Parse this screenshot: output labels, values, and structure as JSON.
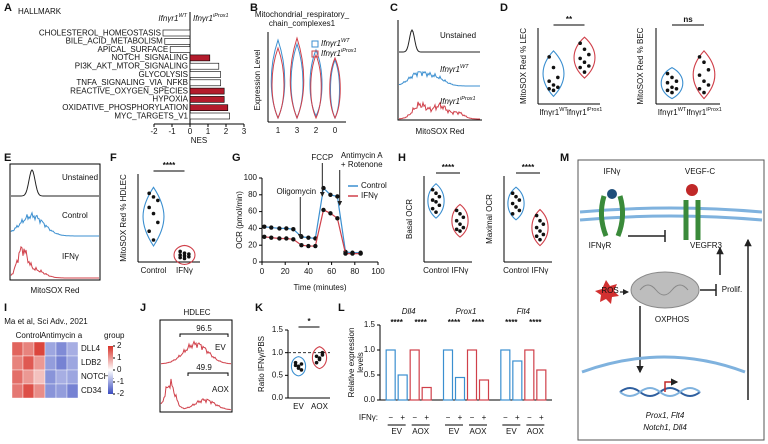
{
  "panel_labels": [
    "A",
    "B",
    "C",
    "D",
    "E",
    "F",
    "G",
    "H",
    "I",
    "J",
    "K",
    "L",
    "M"
  ],
  "chart_data": [
    {
      "type": "hbar",
      "title": "HALLMARK",
      "group_labels": [
        {
          "label": "Ifnγr1",
          "superscript": "WT"
        },
        {
          "label": "Ifnγr1",
          "superscript": "iProx1"
        }
      ],
      "categories": [
        "CHOLESTEROL_HOMEOSTASIS",
        "BILE_ACID_METABOLISM",
        "APICAL_SURFACE",
        "NOTCH_SIGNALING",
        "PI3K_AKT_MTOR_SIGNALING",
        "GLYCOLYSIS",
        "TNFA_SIGNALING_VIA_NFKB",
        "REACTIVE_OXYGEN_SPECIES",
        "HYPOXIA",
        "OXIDATIVE_PHOSPHORYLATION",
        "MYC_TARGETS_V1"
      ],
      "values": [
        -1.5,
        -1.4,
        -1.1,
        1.1,
        1.6,
        1.7,
        1.7,
        1.9,
        1.9,
        2.1,
        2.2
      ],
      "colors": [
        "#ffffff",
        "#ffffff",
        "#ffffff",
        "#b31b2c",
        "#ffffff",
        "#ffffff",
        "#ffffff",
        "#b31b2c",
        "#b31b2c",
        "#b31b2c",
        "#ffffff"
      ],
      "xlim": [
        -2,
        3
      ],
      "xticks": [
        -2,
        -1,
        0,
        1,
        2,
        3
      ],
      "xlabel": "NES"
    },
    {
      "type": "violin",
      "title": [
        "Mitochondrial_respiratory_",
        "chain_complexes1"
      ],
      "ylabel": "Expression Level",
      "categories": [
        "1",
        "3",
        "2",
        "0"
      ],
      "series": [
        {
          "name": "Ifnγr1",
          "superscript": "WT",
          "color": "#3b8fd0"
        },
        {
          "name": "Ifnγr1",
          "superscript": "iProx1",
          "color": "#d0404a"
        }
      ]
    },
    {
      "type": "density",
      "labels": [
        {
          "label": "Unstained"
        },
        {
          "label": "Ifnγr1",
          "superscript": "WT"
        },
        {
          "label": "Ifnγr1",
          "superscript": "iProx1"
        }
      ],
      "colors": [
        "#222222",
        "#3b8fd0",
        "#d0404a"
      ],
      "xlabel": "MitoSOX Red"
    },
    {
      "type": "dot",
      "ylabel": "MitoSOX Red % LEC",
      "significance": "**",
      "categories": [
        {
          "label": "Ifnγr1",
          "superscript": "WT"
        },
        {
          "label": "Ifnγr1",
          "superscript": "iProx1"
        }
      ],
      "values": [
        [
          62,
          48,
          35,
          30,
          25,
          22,
          20,
          18
        ],
        [
          80,
          72,
          65,
          60,
          55,
          50,
          48,
          42
        ]
      ],
      "colors": [
        "#3b8fd0",
        "#d0404a"
      ],
      "ylim": [
        0,
        100
      ]
    },
    {
      "type": "dot",
      "ylabel": "MitoSOX Red % BEC",
      "significance": "ns",
      "categories": [
        {
          "label": "Ifnγr1",
          "superscript": "WT"
        },
        {
          "label": "Ifnγr1",
          "superscript": "iProx1"
        }
      ],
      "values": [
        [
          40,
          35,
          30,
          28,
          22,
          20,
          18,
          15
        ],
        [
          62,
          55,
          45,
          38,
          30,
          25,
          20,
          15
        ]
      ],
      "colors": [
        "#3b8fd0",
        "#d0404a"
      ],
      "ylim": [
        0,
        100
      ]
    },
    {
      "type": "density",
      "labels": [
        {
          "label": "Unstained"
        },
        {
          "label": "Control"
        },
        {
          "label": "IFNγ"
        }
      ],
      "colors": [
        "#222222",
        "#3b8fd0",
        "#d0404a"
      ],
      "xlabel": "MitoSOX Red"
    },
    {
      "type": "dot",
      "ylabel": "MitoSOX Red % HDLEC",
      "significance": "****",
      "categories": [
        "Control",
        "IFNγ"
      ],
      "values": [
        [
          78,
          74,
          70,
          62,
          55,
          45,
          35,
          25
        ],
        [
          12,
          10,
          9,
          8,
          7,
          6,
          5,
          4
        ]
      ],
      "colors": [
        "#3b8fd0",
        "#d0404a"
      ],
      "ylim": [
        0,
        100
      ]
    },
    {
      "type": "line",
      "xlabel": "Time (minutes)",
      "ylabel": "OCR (pmol/min)",
      "annotations": [
        {
          "text": [
            "Oligomycin"
          ],
          "x": 33
        },
        {
          "text": [
            "FCCP"
          ],
          "x": 52
        },
        {
          "text": [
            "Antimycin A",
            "+ Rotenone"
          ],
          "x": 67
        }
      ],
      "x": [
        2,
        8,
        15,
        21,
        27,
        34,
        40,
        46,
        53,
        59,
        65,
        72,
        78,
        85
      ],
      "series": [
        {
          "name": "Control",
          "color": "#3b8fd0",
          "values": [
            42,
            41,
            40,
            40,
            39,
            30,
            29,
            28,
            88,
            80,
            78,
            12,
            11,
            11
          ]
        },
        {
          "name": "IFNγ",
          "color": "#d0404a",
          "values": [
            30,
            29,
            28,
            28,
            27,
            20,
            19,
            19,
            62,
            58,
            52,
            10,
            10,
            10
          ]
        }
      ],
      "xlim": [
        0,
        100
      ],
      "xticks": [
        0,
        20,
        40,
        60,
        80,
        100
      ],
      "ylim": [
        0,
        100
      ],
      "yticks": [
        0,
        20,
        40,
        60,
        80,
        100
      ]
    },
    {
      "type": "dot",
      "ylabel": "Basal OCR",
      "significance": "****",
      "categories": [
        "Control",
        "IFNγ"
      ],
      "values": [
        [
          42,
          40,
          38,
          36,
          35,
          33,
          31,
          29
        ],
        [
          30,
          28,
          26,
          24,
          22,
          20,
          19,
          18
        ]
      ],
      "colors": [
        "#3b8fd0",
        "#d0404a"
      ],
      "ylim": [
        0,
        50
      ]
    },
    {
      "type": "dot",
      "ylabel": "Maximal OCR",
      "significance": "****",
      "categories": [
        "Control",
        "IFNγ"
      ],
      "values": [
        [
          80,
          76,
          72,
          68,
          64,
          60,
          56
        ],
        [
          54,
          48,
          44,
          40,
          36,
          32,
          30,
          26
        ]
      ],
      "colors": [
        "#3b8fd0",
        "#d0404a"
      ],
      "ylim": [
        0,
        100
      ]
    },
    {
      "type": "heatmap",
      "title": "Ma et al, Sci Adv., 2021",
      "groups": [
        "Control",
        "Antimycin a"
      ],
      "legend_title": "group",
      "rows": [
        "DLL4",
        "LDB2",
        "NOTCH1",
        "CD34"
      ],
      "values": [
        [
          1.5,
          1.2,
          1.8,
          -1.0,
          -1.3,
          -0.9
        ],
        [
          1.2,
          1.6,
          1.0,
          -1.1,
          -1.4,
          -1.0
        ],
        [
          1.4,
          1.0,
          0.6,
          -1.2,
          -0.9,
          -1.0
        ],
        [
          1.3,
          1.7,
          1.1,
          -1.2,
          -1.1,
          -1.4
        ]
      ],
      "clim": [
        -2,
        2
      ],
      "cticks": [
        2,
        1,
        0,
        -1,
        -2
      ]
    },
    {
      "type": "density",
      "title": "HDLEC",
      "labels": [
        {
          "label": "EV"
        },
        {
          "label": "AOX"
        }
      ],
      "gates": [
        96.5,
        49.9
      ],
      "colors": [
        "#d0404a",
        "#d0404a"
      ]
    },
    {
      "type": "dot",
      "ylabel": "Ratio IFNγ/PBS",
      "significance": "*",
      "categories": [
        "EV",
        "AOX"
      ],
      "values": [
        [
          0.78,
          0.7,
          0.62,
          0.72,
          0.66,
          0.75
        ],
        [
          0.92,
          0.85,
          1.0,
          0.78,
          0.88,
          0.95
        ]
      ],
      "colors": [
        "#3b8fd0",
        "#d0404a"
      ],
      "ylim": [
        0,
        1.5
      ],
      "reference": 1.0,
      "yticks": [
        {
          "value": 0,
          "label": "0.0"
        },
        {
          "value": 0.5,
          "label": "0.5"
        },
        {
          "value": 1,
          "label": "1.0"
        },
        {
          "value": 1.5,
          "label": "1.5"
        }
      ]
    },
    {
      "type": "grouped-bar",
      "ylabel": [
        "Relative expression",
        "levels"
      ],
      "categories": [
        "Dll4",
        "Prox1",
        "Flt4"
      ],
      "values": [
        [
          1.0,
          0.5,
          1.0,
          0.25
        ],
        [
          1.0,
          0.45,
          1.0,
          0.4
        ],
        [
          1.0,
          0.78,
          1.0,
          0.6
        ]
      ],
      "colors": [
        "#3b8fd0",
        "#3b8fd0",
        "#d0404a",
        "#d0404a"
      ],
      "significance": [
        [
          "****",
          "****"
        ],
        [
          "****",
          "****"
        ],
        [
          "****",
          "****"
        ]
      ],
      "ifn_label": "IFNγ:",
      "signs": [
        "−",
        "+"
      ],
      "conditions": [
        "EV",
        "AOX"
      ],
      "ylim": [
        0,
        1.5
      ],
      "yticks": [
        {
          "value": 0,
          "label": "0.0"
        },
        {
          "value": 0.5,
          "label": "0.5"
        },
        {
          "value": 1,
          "label": "1.0"
        },
        {
          "value": 1.5,
          "label": "1.5"
        }
      ]
    }
  ],
  "diagram": {
    "ligands": [
      "IFNγ",
      "VEGF-C"
    ],
    "receptors": [
      "IFNγR",
      "VEGFR3"
    ],
    "ros": "ROS",
    "proliferation": "Prolif.",
    "oxphos": "OXPHOS",
    "genes": [
      "Prox1, Flt4",
      "Notch1, Dll4"
    ]
  }
}
